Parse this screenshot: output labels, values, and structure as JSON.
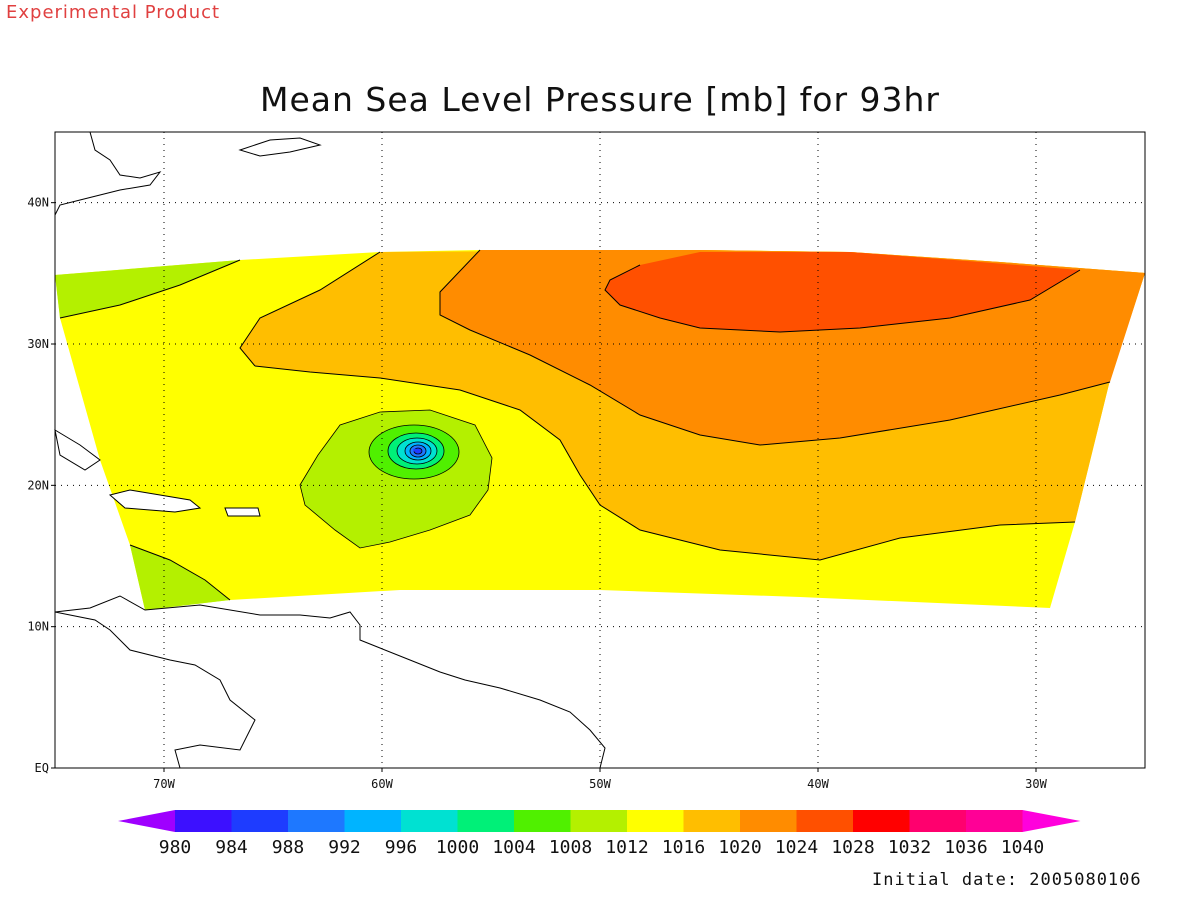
{
  "header": {
    "product_label": "Experimental Product",
    "title": "Mean Sea Level Pressure [mb] for 93hr"
  },
  "footer": {
    "initial_date": "Initial date: 2005080106"
  },
  "map": {
    "lon_range": [
      -75,
      -25
    ],
    "lat_range": [
      0,
      45
    ],
    "lat_ticks": [
      {
        "lat": 40,
        "label": "40N"
      },
      {
        "lat": 30,
        "label": "30N"
      },
      {
        "lat": 20,
        "label": "20N"
      },
      {
        "lat": 10,
        "label": "10N"
      },
      {
        "lat": 0,
        "label": "EQ"
      }
    ],
    "lon_ticks": [
      {
        "lon": -70,
        "label": "70W"
      },
      {
        "lon": -60,
        "label": "60W"
      },
      {
        "lon": -50,
        "label": "50W"
      },
      {
        "lon": -40,
        "label": "40W"
      },
      {
        "lon": -30,
        "label": "30W"
      }
    ],
    "grid": true,
    "storm_center": {
      "lon": -58.5,
      "lat": 22.5
    }
  },
  "colorbar": {
    "levels": [
      "980",
      "984",
      "988",
      "992",
      "996",
      "1000",
      "1004",
      "1008",
      "1012",
      "1016",
      "1020",
      "1024",
      "1028",
      "1032",
      "1036",
      "1040"
    ],
    "colors": [
      "#9f00ff",
      "#3c10ff",
      "#1e3cff",
      "#1e78ff",
      "#00b4ff",
      "#00e1d2",
      "#00f078",
      "#50f000",
      "#b4f000",
      "#ffff00",
      "#ffbe00",
      "#ff8c00",
      "#ff5000",
      "#ff0000",
      "#ff006e",
      "#ff0096",
      "#ff00dc"
    ]
  }
}
